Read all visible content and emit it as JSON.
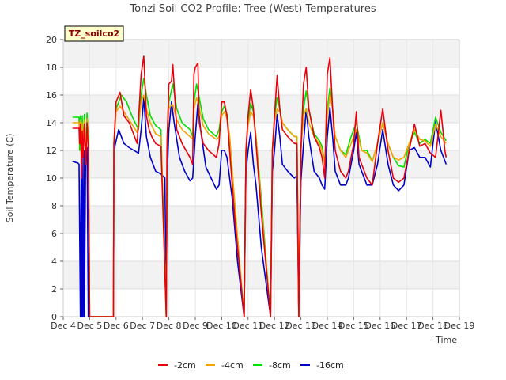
{
  "chart_data": {
    "type": "line",
    "title": "Tonzi Soil CO2 Profile: Tree (West) Temperatures",
    "xlabel": "Time",
    "ylabel": "Soil Temperature (C)",
    "xlim": [
      4,
      19
    ],
    "ylim": [
      0,
      20
    ],
    "x_ticks": [
      4,
      5,
      6,
      7,
      8,
      9,
      10,
      11,
      12,
      13,
      14,
      15,
      16,
      17,
      18,
      19
    ],
    "x_tick_labels": [
      "Dec 4",
      "Dec 5",
      "Dec 6",
      "Dec 7",
      "Dec 8",
      "Dec 9",
      "Dec 10",
      "Dec 11",
      "Dec 12",
      "Dec 13",
      "Dec 14",
      "Dec 15",
      "Dec 16",
      "Dec 17",
      "Dec 18",
      "Dec 19"
    ],
    "y_ticks": [
      0,
      2,
      4,
      6,
      8,
      10,
      12,
      14,
      16,
      18,
      20
    ],
    "y_tick_labels": [
      "0",
      "2",
      "4",
      "6",
      "8",
      "10",
      "12",
      "14",
      "16",
      "18",
      "20"
    ],
    "grid": true,
    "annotation": "TZ_soilco2",
    "legend_position": "bottom-center",
    "series": [
      {
        "name": "-2cm",
        "color": "#e8000b",
        "x": [
          4.35,
          4.45,
          4.6,
          4.62,
          4.65,
          4.7,
          4.72,
          4.75,
          4.8,
          4.85,
          4.9,
          4.95,
          5.0,
          5.5,
          5.9,
          5.92,
          6.0,
          6.15,
          6.3,
          6.5,
          6.8,
          6.95,
          7.05,
          7.15,
          7.25,
          7.35,
          7.5,
          7.7,
          7.9,
          7.93,
          8.0,
          8.1,
          8.15,
          8.3,
          8.5,
          8.8,
          8.9,
          8.95,
          9.0,
          9.1,
          9.15,
          9.3,
          9.5,
          9.8,
          9.9,
          10.0,
          10.1,
          10.2,
          10.3,
          10.5,
          10.85,
          10.92,
          11.0,
          11.1,
          11.2,
          11.3,
          11.5,
          11.85,
          11.92,
          12.0,
          12.1,
          12.2,
          12.3,
          12.5,
          12.75,
          12.85,
          12.92,
          13.0,
          13.1,
          13.2,
          13.3,
          13.5,
          13.7,
          13.8,
          13.9,
          14.0,
          14.1,
          14.2,
          14.3,
          14.5,
          14.7,
          14.8,
          15.0,
          15.1,
          15.2,
          15.3,
          15.5,
          15.7,
          15.9,
          16.1,
          16.3,
          16.5,
          16.7,
          16.9,
          17.1,
          17.3,
          17.5,
          17.7,
          17.9,
          18.1,
          18.3,
          18.4,
          18.45,
          18.5
        ],
        "y": [
          13.6,
          13.6,
          13.6,
          12.5,
          13.9,
          10.0,
          13.4,
          11.5,
          13.9,
          11.0,
          14.0,
          12.0,
          0.0,
          0.0,
          0.0,
          12.5,
          15.5,
          16.2,
          14.5,
          14.0,
          12.5,
          17.5,
          18.8,
          14.5,
          13.5,
          13.0,
          12.5,
          12.3,
          0.0,
          12.5,
          16.8,
          17.0,
          18.2,
          13.5,
          12.5,
          11.5,
          11.0,
          17.5,
          18.0,
          18.3,
          14.0,
          12.5,
          12.0,
          11.5,
          12.5,
          15.5,
          15.5,
          14.5,
          12.0,
          7.0,
          0.0,
          12.0,
          14.5,
          16.4,
          15.0,
          12.5,
          7.5,
          0.0,
          12.0,
          14.5,
          17.4,
          15.0,
          13.5,
          13.0,
          12.5,
          12.5,
          0.0,
          12.0,
          16.8,
          18.0,
          15.0,
          13.0,
          12.2,
          11.5,
          10.0,
          17.5,
          18.7,
          15.0,
          12.0,
          10.5,
          10.0,
          10.5,
          12.5,
          14.8,
          11.5,
          11.0,
          10.0,
          9.5,
          12.5,
          15.0,
          12.0,
          10.0,
          9.7,
          10.0,
          12.0,
          13.9,
          12.3,
          12.5,
          11.8,
          11.5,
          14.9,
          13.0,
          12.0,
          11.5
        ]
      },
      {
        "name": "-4cm",
        "color": "#f5a300",
        "x": [
          4.35,
          4.45,
          4.6,
          4.62,
          4.65,
          4.7,
          4.72,
          4.75,
          4.8,
          4.85,
          4.9,
          4.95,
          5.0,
          5.5,
          5.9,
          5.92,
          6.0,
          6.15,
          6.3,
          6.5,
          6.8,
          6.95,
          7.05,
          7.15,
          7.3,
          7.5,
          7.7,
          7.9,
          7.93,
          8.0,
          8.1,
          8.15,
          8.3,
          8.5,
          8.8,
          8.9,
          8.95,
          9.05,
          9.1,
          9.3,
          9.5,
          9.8,
          9.9,
          10.0,
          10.1,
          10.2,
          10.3,
          10.5,
          10.85,
          10.92,
          11.0,
          11.1,
          11.2,
          11.3,
          11.5,
          11.85,
          11.92,
          12.0,
          12.1,
          12.2,
          12.3,
          12.5,
          12.75,
          12.85,
          12.92,
          13.0,
          13.1,
          13.2,
          13.3,
          13.5,
          13.7,
          13.8,
          13.9,
          14.0,
          14.1,
          14.2,
          14.3,
          14.5,
          14.7,
          14.9,
          15.1,
          15.3,
          15.5,
          15.7,
          15.9,
          16.1,
          16.3,
          16.5,
          16.7,
          16.9,
          17.1,
          17.3,
          17.5,
          17.7,
          17.9,
          18.1,
          18.3,
          18.5
        ],
        "y": [
          14.0,
          14.0,
          14.0,
          12.5,
          14.2,
          11.0,
          14.0,
          12.0,
          14.2,
          11.5,
          14.3,
          12.5,
          0.0,
          0.0,
          0.0,
          12.5,
          14.8,
          15.2,
          14.8,
          14.2,
          13.3,
          15.5,
          16.0,
          15.0,
          14.0,
          13.2,
          13.0,
          0.0,
          12.5,
          15.0,
          15.3,
          15.3,
          14.2,
          13.5,
          13.0,
          12.8,
          15.0,
          15.8,
          15.5,
          13.8,
          13.2,
          12.8,
          13.0,
          14.5,
          14.8,
          14.3,
          13.0,
          8.0,
          0.0,
          12.0,
          13.8,
          14.8,
          14.5,
          13.0,
          8.0,
          0.0,
          12.0,
          14.0,
          15.0,
          14.8,
          14.0,
          13.5,
          13.0,
          13.0,
          0.0,
          12.0,
          14.5,
          15.0,
          14.0,
          13.0,
          12.5,
          12.0,
          11.0,
          14.5,
          16.0,
          15.0,
          13.0,
          12.0,
          11.5,
          12.5,
          13.5,
          12.0,
          11.8,
          11.2,
          12.5,
          14.0,
          12.5,
          11.5,
          11.3,
          11.5,
          12.5,
          13.5,
          12.8,
          12.7,
          12.3,
          13.9,
          13.0,
          12.5
        ]
      },
      {
        "name": "-8cm",
        "color": "#00e000",
        "x": [
          4.35,
          4.6,
          4.62,
          4.65,
          4.7,
          4.72,
          4.75,
          4.8,
          4.85,
          4.9,
          4.95,
          5.0,
          5.5,
          5.9,
          5.92,
          6.0,
          6.2,
          6.4,
          6.6,
          6.85,
          6.95,
          7.05,
          7.15,
          7.3,
          7.5,
          7.7,
          7.9,
          7.93,
          8.0,
          8.15,
          8.3,
          8.5,
          8.8,
          8.9,
          8.95,
          9.05,
          9.15,
          9.3,
          9.5,
          9.8,
          9.9,
          10.0,
          10.1,
          10.2,
          10.3,
          10.5,
          10.85,
          10.92,
          11.0,
          11.1,
          11.2,
          11.3,
          11.5,
          11.85,
          11.92,
          12.0,
          12.1,
          12.2,
          12.3,
          12.5,
          12.75,
          12.85,
          12.92,
          13.0,
          13.1,
          13.2,
          13.3,
          13.5,
          13.7,
          13.8,
          13.9,
          14.0,
          14.1,
          14.2,
          14.3,
          14.5,
          14.7,
          14.9,
          15.1,
          15.3,
          15.5,
          15.7,
          15.9,
          16.1,
          16.3,
          16.5,
          16.7,
          16.9,
          17.1,
          17.3,
          17.5,
          17.7,
          17.9,
          18.1,
          18.3,
          18.5
        ],
        "y": [
          14.4,
          14.4,
          12.0,
          14.5,
          11.0,
          14.5,
          12.0,
          14.6,
          12.0,
          14.7,
          13.0,
          0.0,
          0.0,
          0.0,
          12.5,
          15.0,
          16.0,
          15.5,
          14.5,
          13.5,
          16.0,
          17.2,
          16.0,
          14.5,
          13.8,
          13.5,
          0.0,
          12.5,
          15.5,
          16.8,
          15.0,
          14.0,
          13.5,
          13.0,
          15.5,
          16.8,
          15.8,
          14.3,
          13.5,
          13.0,
          13.5,
          14.8,
          15.2,
          14.6,
          13.0,
          8.0,
          0.0,
          12.0,
          14.2,
          15.4,
          14.8,
          13.0,
          8.5,
          0.0,
          12.0,
          14.5,
          15.8,
          15.0,
          14.0,
          13.5,
          13.0,
          13.0,
          0.0,
          12.0,
          15.0,
          16.3,
          15.0,
          13.2,
          12.7,
          12.3,
          11.0,
          15.0,
          16.5,
          15.0,
          13.0,
          12.0,
          11.7,
          13.0,
          14.0,
          12.0,
          12.0,
          11.2,
          12.5,
          14.0,
          12.5,
          11.5,
          10.9,
          10.8,
          12.5,
          13.3,
          12.5,
          12.8,
          12.5,
          14.4,
          13.3,
          12.7
        ]
      },
      {
        "name": "-16cm",
        "color": "#0000cc",
        "x": [
          4.35,
          4.55,
          4.6,
          4.65,
          4.68,
          4.7,
          4.72,
          4.75,
          4.78,
          4.8,
          4.85,
          4.9,
          4.95,
          5.0,
          5.5,
          5.9,
          5.92,
          6.1,
          6.3,
          6.5,
          6.85,
          6.95,
          7.05,
          7.15,
          7.3,
          7.5,
          7.7,
          7.85,
          7.9,
          7.93,
          8.0,
          8.1,
          8.2,
          8.4,
          8.6,
          8.8,
          8.9,
          9.0,
          9.1,
          9.2,
          9.4,
          9.6,
          9.8,
          9.9,
          10.0,
          10.1,
          10.2,
          10.4,
          10.6,
          10.85,
          10.92,
          11.0,
          11.1,
          11.2,
          11.3,
          11.5,
          11.85,
          11.92,
          12.0,
          12.1,
          12.2,
          12.3,
          12.5,
          12.75,
          12.85,
          12.92,
          13.0,
          13.1,
          13.2,
          13.3,
          13.5,
          13.7,
          13.8,
          13.9,
          14.0,
          14.1,
          14.2,
          14.3,
          14.5,
          14.7,
          14.8,
          15.0,
          15.1,
          15.2,
          15.3,
          15.5,
          15.7,
          15.9,
          16.1,
          16.3,
          16.5,
          16.7,
          16.9,
          17.1,
          17.3,
          17.5,
          17.7,
          17.9,
          18.1,
          18.3,
          18.5
        ],
        "y": [
          11.2,
          11.1,
          11.0,
          0.0,
          11.5,
          0.0,
          11.8,
          0.0,
          12.0,
          0.0,
          12.0,
          12.2,
          0.0,
          0.0,
          0.0,
          0.0,
          12.0,
          13.5,
          12.5,
          12.2,
          11.8,
          13.5,
          15.8,
          13.0,
          11.5,
          10.5,
          10.3,
          10.0,
          0.0,
          10.0,
          13.5,
          15.5,
          14.0,
          11.5,
          10.5,
          9.8,
          10.0,
          13.0,
          15.4,
          13.5,
          10.8,
          10.0,
          9.2,
          9.5,
          12.0,
          12.0,
          11.5,
          8.5,
          4.0,
          0.0,
          10.5,
          12.0,
          13.3,
          11.0,
          9.5,
          5.0,
          0.0,
          10.5,
          12.0,
          14.6,
          13.0,
          11.0,
          10.5,
          10.0,
          10.2,
          0.0,
          9.8,
          12.5,
          15.0,
          13.0,
          10.5,
          10.0,
          9.5,
          9.2,
          13.0,
          15.1,
          13.0,
          10.5,
          9.5,
          9.5,
          10.0,
          12.0,
          13.3,
          11.0,
          10.5,
          9.5,
          9.5,
          11.0,
          13.5,
          11.0,
          9.5,
          9.1,
          9.5,
          12.0,
          12.2,
          11.5,
          11.5,
          10.8,
          14.1,
          12.0,
          11.0
        ]
      }
    ]
  }
}
